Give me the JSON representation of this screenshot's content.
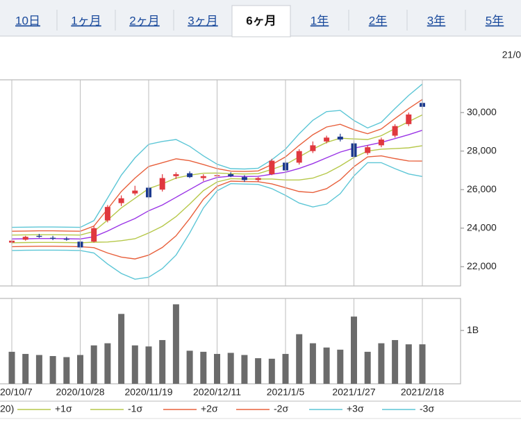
{
  "tabs": [
    {
      "label": "10日"
    },
    {
      "label": "1ヶ月"
    },
    {
      "label": "2ヶ月"
    },
    {
      "label": "3ヶ月"
    },
    {
      "label": "6ヶ月",
      "selected": true
    },
    {
      "label": "1年"
    },
    {
      "label": "2年"
    },
    {
      "label": "3年"
    },
    {
      "label": "5年"
    }
  ],
  "date_label": "21/0",
  "chart_data": [
    {
      "type": "candlestick",
      "open": [
        23250,
        23400,
        23600,
        23500,
        23450,
        23300,
        23300,
        24400,
        25300,
        25800,
        26100,
        26000,
        26700,
        26850,
        26600,
        26700,
        26800,
        26650,
        26500,
        26800,
        27400,
        27400,
        28000,
        28500,
        28750,
        28400,
        27900,
        28300,
        28800,
        29400,
        30500
      ],
      "high": [
        23400,
        23600,
        23700,
        23600,
        23550,
        23400,
        24100,
        25200,
        25700,
        26200,
        26200,
        26800,
        26900,
        26950,
        26800,
        26850,
        26900,
        26750,
        26650,
        27600,
        27500,
        28100,
        28500,
        28800,
        28900,
        28500,
        28300,
        28700,
        29400,
        30000,
        30700
      ],
      "low": [
        23150,
        23350,
        23500,
        23380,
        23350,
        22950,
        23250,
        24300,
        25150,
        25700,
        25500,
        25900,
        26550,
        26600,
        26450,
        26600,
        26650,
        26400,
        26400,
        26750,
        26900,
        27300,
        27900,
        28400,
        28500,
        27600,
        27800,
        28200,
        28700,
        29300,
        30200
      ],
      "close": [
        23350,
        23550,
        23550,
        23450,
        23400,
        23000,
        24000,
        25100,
        25550,
        25950,
        25600,
        26600,
        26800,
        26650,
        26700,
        26750,
        26700,
        26500,
        26600,
        27500,
        27000,
        28000,
        28300,
        28700,
        28600,
        27700,
        28200,
        28600,
        29300,
        29900,
        30300
      ],
      "up_color": "#e0383e",
      "down_color": "#1c3a8f",
      "series": [
        {
          "name": "20)",
          "color": "#9a34e6",
          "values": [
            23440,
            23450,
            23460,
            23460,
            23450,
            23440,
            23550,
            23850,
            24200,
            24500,
            24900,
            25200,
            25600,
            26000,
            26400,
            26630,
            26700,
            26680,
            26690,
            26800,
            26900,
            27100,
            27350,
            27650,
            27950,
            28150,
            28300,
            28450,
            28650,
            28850,
            29080
          ]
        },
        {
          "name": "+1σ",
          "color": "#b6c84a",
          "values": [
            23640,
            23650,
            23660,
            23660,
            23650,
            23640,
            23830,
            24420,
            25050,
            25550,
            26050,
            26300,
            26600,
            26750,
            26850,
            26860,
            26830,
            26810,
            26830,
            27050,
            27300,
            27700,
            28100,
            28450,
            28670,
            28630,
            28600,
            28800,
            29170,
            29530,
            29880
          ]
        },
        {
          "name": "-1σ",
          "color": "#b6c84a",
          "values": [
            23240,
            23250,
            23260,
            23260,
            23250,
            23240,
            23270,
            23280,
            23350,
            23450,
            23750,
            24100,
            24600,
            25250,
            25950,
            26400,
            26570,
            26550,
            26550,
            26550,
            26500,
            26500,
            26600,
            26850,
            27230,
            27670,
            28000,
            28100,
            28130,
            28170,
            28280
          ]
        },
        {
          "name": "+2σ",
          "color": "#e8603c",
          "values": [
            23840,
            23850,
            23860,
            23860,
            23850,
            23840,
            24110,
            24990,
            25900,
            26600,
            27200,
            27400,
            27600,
            27500,
            27300,
            27090,
            26960,
            26940,
            26970,
            27300,
            27700,
            28300,
            28850,
            29250,
            29390,
            29110,
            28900,
            29150,
            29690,
            30210,
            30680
          ]
        },
        {
          "name": "-2σ",
          "color": "#e8603c",
          "values": [
            23040,
            23050,
            23060,
            23060,
            23050,
            23040,
            22990,
            22710,
            22500,
            22400,
            22600,
            23000,
            23600,
            24500,
            25500,
            26170,
            26440,
            26420,
            26410,
            26300,
            26100,
            25900,
            25850,
            26050,
            26510,
            27190,
            27700,
            27750,
            27610,
            27490,
            27480
          ]
        },
        {
          "name": "+3σ",
          "color": "#5cc6d6",
          "values": [
            24040,
            24050,
            24060,
            24060,
            24050,
            24040,
            24390,
            25560,
            26750,
            27650,
            28350,
            28500,
            28600,
            28250,
            27750,
            27320,
            27090,
            27070,
            27110,
            27550,
            28100,
            28900,
            29600,
            30050,
            30110,
            29590,
            29200,
            29500,
            30210,
            30890,
            31480
          ]
        },
        {
          "name": "-3σ",
          "color": "#5cc6d6",
          "values": [
            22840,
            22850,
            22860,
            22860,
            22850,
            22840,
            22710,
            22140,
            21650,
            21350,
            21450,
            21900,
            22600,
            23750,
            25050,
            25940,
            26310,
            26290,
            26270,
            26050,
            25700,
            25300,
            25100,
            25250,
            25790,
            26710,
            27400,
            27400,
            27090,
            26810,
            26680
          ]
        }
      ],
      "ylim": [
        21000,
        31700
      ],
      "yticks": [
        {
          "value": 22000,
          "label": "22,000"
        },
        {
          "value": 24000,
          "label": "24,000"
        },
        {
          "value": 26000,
          "label": "26,000"
        },
        {
          "value": 28000,
          "label": "28,000"
        },
        {
          "value": 30000,
          "label": "30,000"
        }
      ]
    },
    {
      "type": "bar",
      "color": "#6b6b6b",
      "categories": [
        "20/10/7",
        null,
        null,
        null,
        null,
        "2020/10/28",
        null,
        null,
        null,
        null,
        "2020/11/19",
        null,
        null,
        null,
        null,
        "2020/12/11",
        null,
        null,
        null,
        null,
        "2021/1/5",
        null,
        null,
        null,
        null,
        "2021/1/27",
        null,
        null,
        null,
        null,
        "2021/2/18"
      ],
      "values": [
        600000000,
        560000000,
        540000000,
        520000000,
        500000000,
        540000000,
        720000000,
        760000000,
        1310000000,
        720000000,
        700000000,
        820000000,
        1490000000,
        620000000,
        600000000,
        560000000,
        580000000,
        540000000,
        480000000,
        470000000,
        560000000,
        930000000,
        760000000,
        680000000,
        640000000,
        1260000000,
        600000000,
        760000000,
        820000000,
        740000000,
        740000000
      ],
      "ylim": [
        0,
        1600000000
      ],
      "yticks": [
        {
          "value": 1000000000,
          "label": "1B"
        }
      ]
    }
  ]
}
